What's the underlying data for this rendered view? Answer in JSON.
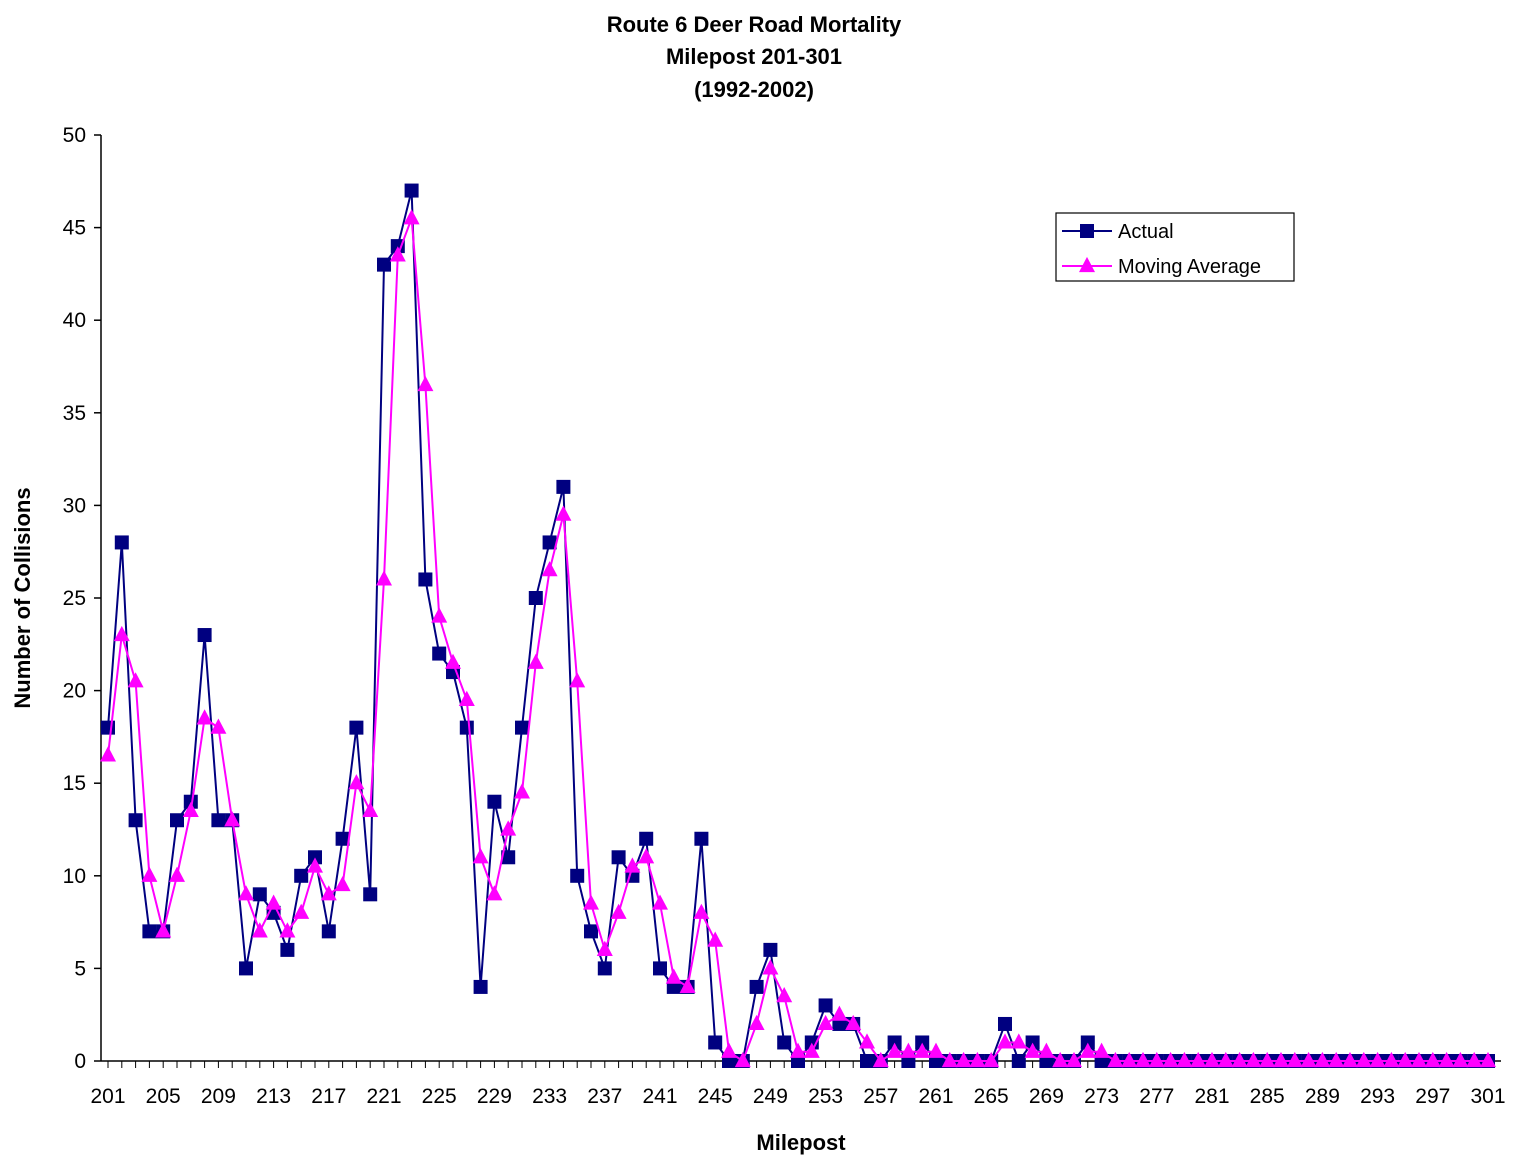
{
  "chart_data": {
    "type": "line",
    "title_lines": [
      "Route 6 Deer Road Mortality",
      "Milepost 201-301",
      "(1992-2002)"
    ],
    "xlabel": "Milepost",
    "ylabel": "Number of Collisions",
    "ylim": [
      0,
      50
    ],
    "yticks": [
      0,
      5,
      10,
      15,
      20,
      25,
      30,
      35,
      40,
      45,
      50
    ],
    "xlim": [
      201,
      301
    ],
    "xtick_labels": [
      201,
      205,
      209,
      213,
      217,
      221,
      225,
      229,
      233,
      237,
      241,
      245,
      249,
      253,
      257,
      261,
      265,
      269,
      273,
      277,
      281,
      285,
      289,
      293,
      297,
      301
    ],
    "grid": false,
    "legend_position": "top-right",
    "series": [
      {
        "name": "Actual",
        "color": "#000080",
        "marker": "square",
        "x_start": 201,
        "values": [
          18,
          28,
          13,
          7,
          7,
          13,
          14,
          23,
          13,
          13,
          5,
          9,
          8,
          6,
          10,
          11,
          7,
          12,
          18,
          9,
          43,
          44,
          47,
          26,
          22,
          21,
          18,
          4,
          14,
          11,
          18,
          25,
          28,
          31,
          10,
          7,
          5,
          11,
          10,
          12,
          5,
          4,
          4,
          12,
          1,
          0,
          0,
          4,
          6,
          1,
          0,
          1,
          3,
          2,
          2,
          0,
          0,
          1,
          0,
          1,
          0,
          0,
          0,
          0,
          0,
          2,
          0,
          1,
          0,
          0,
          0,
          1,
          0,
          0,
          0,
          0,
          0,
          0,
          0,
          0,
          0,
          0,
          0,
          0,
          0,
          0,
          0,
          0,
          0,
          0,
          0,
          0,
          0,
          0,
          0,
          0,
          0,
          0,
          0,
          0,
          0
        ]
      },
      {
        "name": "Moving Average",
        "color": "#FF00FF",
        "marker": "triangle",
        "x_start": 201,
        "values": [
          16.5,
          23,
          20.5,
          10,
          7,
          10,
          13.5,
          18.5,
          18,
          13,
          9,
          7,
          8.5,
          7,
          8,
          10.5,
          9,
          9.5,
          15,
          13.5,
          26,
          43.5,
          45.5,
          36.5,
          24,
          21.5,
          19.5,
          11,
          9,
          12.5,
          14.5,
          21.5,
          26.5,
          29.5,
          20.5,
          8.5,
          6,
          8,
          10.5,
          11,
          8.5,
          4.5,
          4,
          8,
          6.5,
          0.5,
          0,
          2,
          5,
          3.5,
          0.5,
          0.5,
          2,
          2.5,
          2,
          1,
          0,
          0.5,
          0.5,
          0.5,
          0.5,
          0,
          0,
          0,
          0,
          1,
          1,
          0.5,
          0.5,
          0,
          0,
          0.5,
          0.5,
          0,
          0,
          0,
          0,
          0,
          0,
          0,
          0,
          0,
          0,
          0,
          0,
          0,
          0,
          0,
          0,
          0,
          0,
          0,
          0,
          0,
          0,
          0,
          0,
          0,
          0,
          0,
          0
        ]
      }
    ]
  }
}
